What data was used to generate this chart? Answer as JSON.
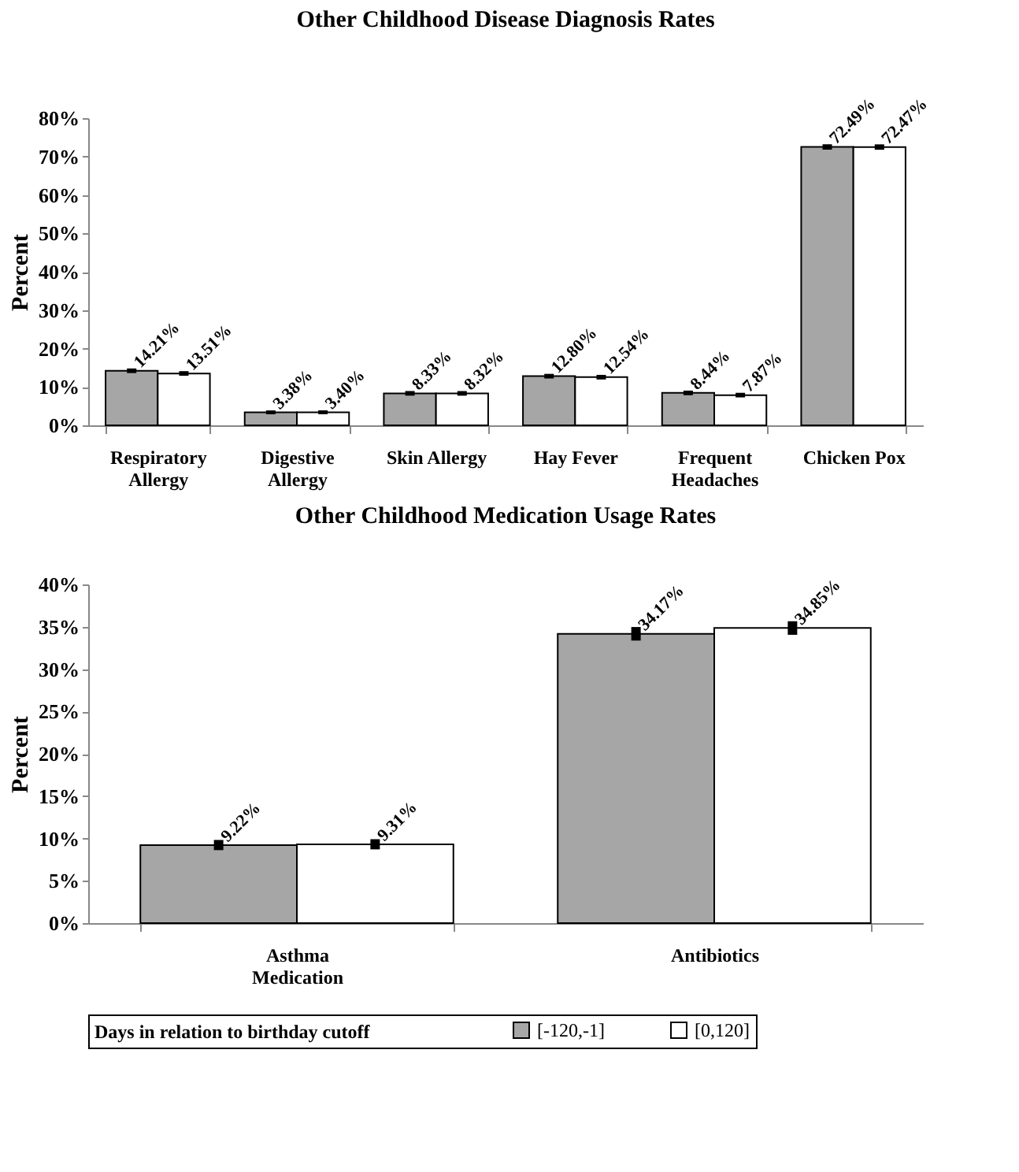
{
  "chart_data": [
    {
      "type": "bar",
      "title": "Other Childhood Disease Diagnosis Rates",
      "ylabel": "Percent",
      "categories": [
        "Respiratory Allergy",
        "Digestive Allergy",
        "Skin Allergy",
        "Hay Fever",
        "Frequent Headaches",
        "Chicken Pox"
      ],
      "series": [
        {
          "color": "#a6a6a6",
          "values": [
            14.21,
            3.38,
            8.33,
            12.8,
            8.44,
            72.49
          ],
          "value_labels": [
            "14.21%",
            "3.38%",
            "8.33%",
            "12.80%",
            "8.44%",
            "72.49%"
          ],
          "errors": [
            0.6,
            0.5,
            0.6,
            0.6,
            0.6,
            0.7
          ]
        },
        {
          "color": "#ffffff",
          "values": [
            13.51,
            3.4,
            8.32,
            12.54,
            7.87,
            72.47
          ],
          "value_labels": [
            "13.51%",
            "3.40%",
            "8.32%",
            "12.54%",
            "7.87%",
            "72.47%"
          ],
          "errors": [
            0.6,
            0.5,
            0.6,
            0.6,
            0.6,
            0.7
          ]
        }
      ],
      "ylim": [
        0,
        80
      ],
      "yticks": [
        {
          "value": 0,
          "label": "0%"
        },
        {
          "value": 10,
          "label": "10%"
        },
        {
          "value": 20,
          "label": "20%"
        },
        {
          "value": 30,
          "label": "30%"
        },
        {
          "value": 40,
          "label": "40%"
        },
        {
          "value": 50,
          "label": "50%"
        },
        {
          "value": 60,
          "label": "60%"
        },
        {
          "value": 70,
          "label": "70%"
        },
        {
          "value": 80,
          "label": "80%"
        }
      ],
      "grid": false,
      "legend": false
    },
    {
      "type": "bar",
      "title": "Other Childhood Medication Usage Rates",
      "ylabel": "Percent",
      "legend_title": "Days in relation to birthday cutoff",
      "categories": [
        "Asthma Medication",
        "Antibiotics"
      ],
      "series": [
        {
          "name": "[-120,-1]",
          "color": "#a6a6a6",
          "values": [
            9.22,
            34.17
          ],
          "value_labels": [
            "9.22%",
            "34.17%"
          ],
          "errors": [
            0.6,
            0.8
          ]
        },
        {
          "name": "[0,120]",
          "color": "#ffffff",
          "values": [
            9.31,
            34.85
          ],
          "value_labels": [
            "9.31%",
            "34.85%"
          ],
          "errors": [
            0.6,
            0.8
          ]
        }
      ],
      "ylim": [
        0,
        40
      ],
      "yticks": [
        {
          "value": 0,
          "label": "0%"
        },
        {
          "value": 5,
          "label": "5%"
        },
        {
          "value": 10,
          "label": "10%"
        },
        {
          "value": 15,
          "label": "15%"
        },
        {
          "value": 20,
          "label": "20%"
        },
        {
          "value": 25,
          "label": "25%"
        },
        {
          "value": 30,
          "label": "30%"
        },
        {
          "value": 35,
          "label": "35%"
        },
        {
          "value": 40,
          "label": "40%"
        }
      ],
      "grid": false,
      "legend": "bottom"
    }
  ]
}
